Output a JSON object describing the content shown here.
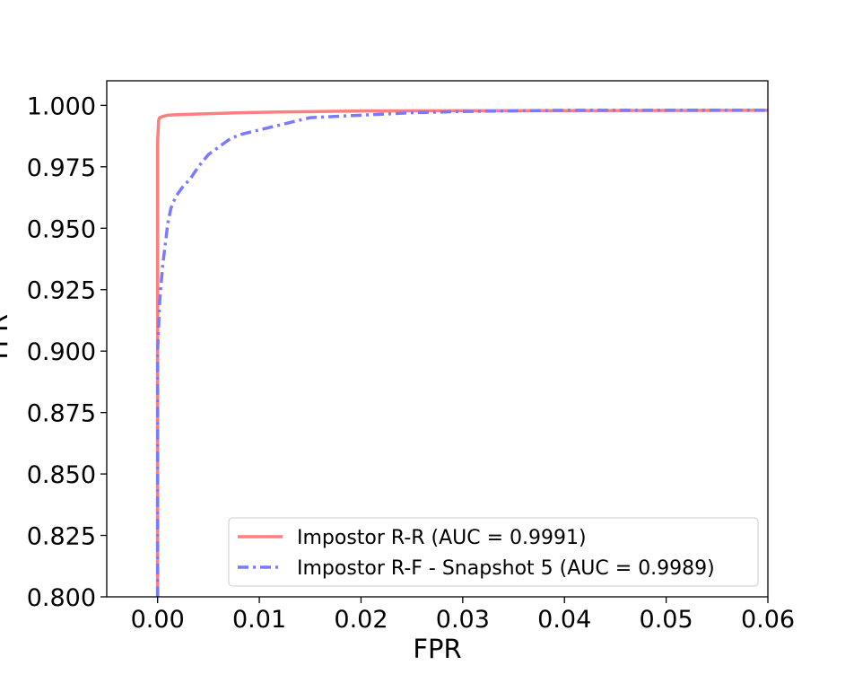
{
  "chart_data": {
    "type": "line",
    "xlabel": "FPR",
    "ylabel": "TPR",
    "xlim": [
      -0.005,
      0.06
    ],
    "ylim": [
      0.8,
      1.01
    ],
    "xticks": [
      0.0,
      0.01,
      0.02,
      0.03,
      0.04,
      0.05,
      0.06
    ],
    "xtick_labels": [
      "0.00",
      "0.01",
      "0.02",
      "0.03",
      "0.04",
      "0.05",
      "0.06"
    ],
    "yticks": [
      0.8,
      0.825,
      0.85,
      0.875,
      0.9,
      0.925,
      0.95,
      0.975,
      1.0
    ],
    "ytick_labels": [
      "0.800",
      "0.825",
      "0.850",
      "0.875",
      "0.900",
      "0.925",
      "0.950",
      "0.975",
      "1.000"
    ],
    "grid": false,
    "legend_position": "lower-right",
    "series": [
      {
        "name": "Impostor R-R (AUC = 0.9991)",
        "color": "#ff7f7f",
        "style": "solid",
        "x": [
          0.0,
          0.0,
          0.0,
          0.0001,
          0.0002,
          0.0005,
          0.001,
          0.002,
          0.004,
          0.008,
          0.012,
          0.016,
          0.02,
          0.03,
          0.06
        ],
        "y": [
          0.8,
          0.9,
          0.985,
          0.994,
          0.995,
          0.9955,
          0.996,
          0.9962,
          0.9965,
          0.997,
          0.9973,
          0.9975,
          0.9977,
          0.9978,
          0.998
        ]
      },
      {
        "name": "Impostor R-F - Snapshot 5 (AUC = 0.9989)",
        "color": "#7a7aff",
        "style": "dashdot",
        "x": [
          0.0,
          0.0,
          0.0002,
          0.0005,
          0.0008,
          0.001,
          0.0013,
          0.0018,
          0.0025,
          0.0032,
          0.004,
          0.005,
          0.006,
          0.007,
          0.008,
          0.009,
          0.01,
          0.012,
          0.015,
          0.02,
          0.025,
          0.03,
          0.04,
          0.06
        ],
        "y": [
          0.8,
          0.9,
          0.92,
          0.935,
          0.945,
          0.952,
          0.958,
          0.963,
          0.967,
          0.97,
          0.975,
          0.98,
          0.983,
          0.986,
          0.988,
          0.989,
          0.99,
          0.992,
          0.995,
          0.996,
          0.997,
          0.9975,
          0.998,
          0.998
        ]
      }
    ]
  }
}
